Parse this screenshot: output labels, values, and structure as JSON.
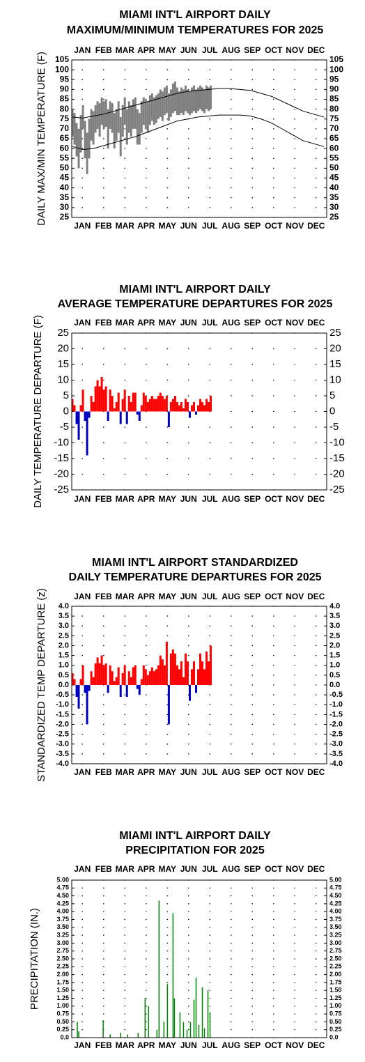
{
  "chart_data": [
    {
      "type": "range",
      "title": [
        "MIAMI INT'L AIRPORT DAILY",
        "MAXIMUM/MINIMUM TEMPERATURES FOR 2025"
      ],
      "y_label": "DAILY MAX/MIN TEMPERATURE (F)",
      "categories": [
        "JAN",
        "FEB",
        "MAR",
        "APR",
        "MAY",
        "JUN",
        "JUL",
        "AUG",
        "SEP",
        "OCT",
        "NOV",
        "DEC"
      ],
      "xlim": [
        0,
        365
      ],
      "ylim": [
        25,
        105
      ],
      "yticks": [
        25,
        30,
        35,
        40,
        45,
        50,
        55,
        60,
        65,
        70,
        75,
        80,
        85,
        90,
        95,
        100,
        105
      ],
      "x": [
        1,
        4,
        7,
        10,
        13,
        16,
        19,
        22,
        25,
        28,
        31,
        34,
        37,
        40,
        43,
        46,
        49,
        52,
        55,
        58,
        61,
        64,
        67,
        70,
        73,
        76,
        79,
        82,
        85,
        88,
        91,
        94,
        97,
        100,
        103,
        106,
        109,
        112,
        115,
        118,
        121,
        124,
        127,
        130,
        133,
        136,
        139,
        142,
        145,
        148,
        151,
        154,
        157,
        160,
        163,
        166,
        169,
        172,
        175,
        178,
        181,
        184,
        187,
        190,
        193,
        196,
        199
      ],
      "high": [
        80,
        78,
        73,
        70,
        77,
        82,
        74,
        68,
        75,
        80,
        79,
        82,
        84,
        83,
        86,
        84,
        85,
        80,
        84,
        83,
        78,
        80,
        84,
        76,
        82,
        86,
        80,
        84,
        82,
        85,
        86,
        80,
        78,
        84,
        86,
        85,
        84,
        87,
        88,
        86,
        87,
        88,
        90,
        89,
        91,
        92,
        88,
        90,
        93,
        94,
        91,
        89,
        91,
        90,
        92,
        90,
        89,
        91,
        92,
        90,
        91,
        92,
        91,
        90,
        92,
        91,
        92
      ],
      "low": [
        66,
        62,
        56,
        50,
        58,
        70,
        55,
        47,
        55,
        64,
        62,
        68,
        70,
        66,
        72,
        70,
        71,
        60,
        70,
        68,
        60,
        64,
        68,
        56,
        66,
        72,
        62,
        68,
        66,
        70,
        70,
        62,
        62,
        68,
        72,
        70,
        68,
        72,
        74,
        72,
        73,
        75,
        76,
        74,
        77,
        78,
        74,
        76,
        78,
        79,
        77,
        77,
        78,
        77,
        79,
        78,
        77,
        78,
        79,
        78,
        79,
        80,
        79,
        78,
        80,
        79,
        80
      ],
      "color": "#808080",
      "normal_x": [
        1,
        16,
        31,
        46,
        61,
        76,
        91,
        106,
        121,
        136,
        151,
        166,
        181,
        196,
        211,
        226,
        241,
        256,
        271,
        286,
        301,
        316,
        331,
        346,
        361
      ],
      "normal_high": [
        76,
        75.5,
        76.5,
        77.5,
        79,
        80.5,
        82,
        83.5,
        85,
        86.5,
        88,
        89,
        89.5,
        90,
        90.5,
        90.5,
        90,
        89.5,
        88,
        86.5,
        84,
        81.5,
        79,
        77.5,
        76
      ],
      "normal_low": [
        61,
        59.5,
        60,
        61.5,
        63,
        64.5,
        66,
        68,
        70,
        72,
        74,
        75,
        76,
        76.5,
        77,
        77,
        77,
        76.5,
        75,
        73,
        70,
        67,
        64,
        62.5,
        61
      ],
      "line_color": "#000000",
      "grid": true
    },
    {
      "type": "bar",
      "title": [
        "MIAMI INT'L AIRPORT DAILY",
        "AVERAGE TEMPERATURE DEPARTURES FOR 2025"
      ],
      "y_label": "DAILY TEMPERATURE DEPARTURE (F)",
      "categories": [
        "JAN",
        "FEB",
        "MAR",
        "APR",
        "MAY",
        "JUN",
        "JUL",
        "AUG",
        "SEP",
        "OCT",
        "NOV",
        "DEC"
      ],
      "xlim": [
        0,
        365
      ],
      "ylim": [
        -25,
        25
      ],
      "yticks": [
        -25,
        -20,
        -15,
        -10,
        -5,
        0,
        5,
        10,
        15,
        20,
        25
      ],
      "x": [
        1,
        4,
        7,
        10,
        13,
        16,
        19,
        22,
        25,
        28,
        31,
        34,
        37,
        40,
        43,
        46,
        49,
        52,
        55,
        58,
        61,
        64,
        67,
        70,
        73,
        76,
        79,
        82,
        85,
        88,
        91,
        94,
        97,
        100,
        103,
        106,
        109,
        112,
        115,
        118,
        121,
        124,
        127,
        130,
        133,
        136,
        139,
        142,
        145,
        148,
        151,
        154,
        157,
        160,
        163,
        166,
        169,
        172,
        175,
        178,
        181,
        184,
        187,
        190,
        193,
        196,
        199
      ],
      "values": [
        4,
        2,
        -4,
        -9,
        2,
        7,
        -3,
        -14,
        -2,
        5,
        3,
        8,
        10,
        8,
        11,
        7,
        8,
        -3,
        7,
        5,
        1,
        3,
        6,
        -4,
        4,
        7,
        -4,
        5,
        3,
        6,
        6,
        -1,
        -3,
        2,
        6,
        5,
        3,
        4,
        5,
        4,
        4,
        5,
        6,
        5,
        4,
        5,
        -5,
        3,
        4,
        5,
        3,
        2,
        3,
        1,
        4,
        3,
        -2,
        2,
        3,
        -1,
        2,
        4,
        3,
        2,
        4,
        3,
        5
      ],
      "color_positive": "#ff0000",
      "color_negative": "#0000c0",
      "grid": true
    },
    {
      "type": "bar",
      "title": [
        "MIAMI INT'L AIRPORT STANDARDIZED",
        "DAILY TEMPERATURE DEPARTURES FOR 2025"
      ],
      "y_label": "STANDARDIZED TEMP DEPARTURE (z)",
      "categories": [
        "JAN",
        "FEB",
        "MAR",
        "APR",
        "MAY",
        "JUN",
        "JUL",
        "AUG",
        "SEP",
        "OCT",
        "NOV",
        "DEC"
      ],
      "xlim": [
        0,
        365
      ],
      "ylim": [
        -4,
        4
      ],
      "yticks": [
        {
          "value": -4,
          "label": "-4.0"
        },
        {
          "value": -3.5,
          "label": "-3.5"
        },
        {
          "value": -3,
          "label": "-3.0"
        },
        {
          "value": -2.5,
          "label": "-2.5"
        },
        {
          "value": -2,
          "label": "-2.0"
        },
        {
          "value": -1.5,
          "label": "-1.5"
        },
        {
          "value": -1,
          "label": "-1.0"
        },
        {
          "value": -0.5,
          "label": "-0.5"
        },
        {
          "value": 0,
          "label": "0.0"
        },
        {
          "value": 0.5,
          "label": "0.5"
        },
        {
          "value": 1,
          "label": "1.0"
        },
        {
          "value": 1.5,
          "label": "1.5"
        },
        {
          "value": 2,
          "label": "2.0"
        },
        {
          "value": 2.5,
          "label": "2.5"
        },
        {
          "value": 3,
          "label": "3.0"
        },
        {
          "value": 3.5,
          "label": "3.5"
        },
        {
          "value": 4,
          "label": "4.0"
        }
      ],
      "x": [
        1,
        4,
        7,
        10,
        13,
        16,
        19,
        22,
        25,
        28,
        31,
        34,
        37,
        40,
        43,
        46,
        49,
        52,
        55,
        58,
        61,
        64,
        67,
        70,
        73,
        76,
        79,
        82,
        85,
        88,
        91,
        94,
        97,
        100,
        103,
        106,
        109,
        112,
        115,
        118,
        121,
        124,
        127,
        130,
        133,
        136,
        139,
        142,
        145,
        148,
        151,
        154,
        157,
        160,
        163,
        166,
        169,
        172,
        175,
        178,
        181,
        184,
        187,
        190,
        193,
        196,
        199
      ],
      "values": [
        0.6,
        0.3,
        -0.6,
        -1.2,
        0.3,
        1.0,
        -0.4,
        -2.0,
        -0.3,
        0.7,
        0.4,
        1.1,
        1.4,
        1.1,
        1.5,
        1.0,
        1.1,
        -0.4,
        1.0,
        0.7,
        0.2,
        0.4,
        0.9,
        -0.6,
        0.6,
        1.0,
        -0.6,
        0.7,
        0.4,
        0.9,
        1.0,
        -0.2,
        -0.5,
        0.3,
        1.0,
        0.8,
        0.5,
        0.7,
        0.9,
        0.7,
        0.8,
        1.0,
        1.5,
        1.3,
        1.0,
        2.2,
        -2.0,
        1.6,
        1.8,
        1.6,
        1.0,
        0.8,
        1.2,
        0.4,
        1.6,
        1.2,
        -0.8,
        0.8,
        1.2,
        -0.4,
        0.8,
        1.6,
        1.2,
        0.8,
        1.7,
        1.2,
        2.0
      ],
      "color_positive": "#ff0000",
      "color_negative": "#0000c0",
      "grid": true
    },
    {
      "type": "bar",
      "title": [
        "MIAMI INT'L AIRPORT DAILY",
        "PRECIPITATION FOR 2025"
      ],
      "y_label": "PRECIPITATION (IN.)",
      "categories": [
        "JAN",
        "FEB",
        "MAR",
        "APR",
        "MAY",
        "JUN",
        "JUL",
        "AUG",
        "SEP",
        "OCT",
        "NOV",
        "DEC"
      ],
      "xlim": [
        0,
        365
      ],
      "ylim": [
        0,
        5
      ],
      "yticks": [
        {
          "value": 0,
          "label": "0.0"
        },
        {
          "value": 0.25,
          "label": "0.25"
        },
        {
          "value": 0.5,
          "label": "0.50"
        },
        {
          "value": 0.75,
          "label": "0.75"
        },
        {
          "value": 1,
          "label": "1.00"
        },
        {
          "value": 1.25,
          "label": "1.25"
        },
        {
          "value": 1.5,
          "label": "1.50"
        },
        {
          "value": 1.75,
          "label": "1.75"
        },
        {
          "value": 2,
          "label": "2.00"
        },
        {
          "value": 2.25,
          "label": "2.25"
        },
        {
          "value": 2.5,
          "label": "2.50"
        },
        {
          "value": 2.75,
          "label": "2.75"
        },
        {
          "value": 3,
          "label": "3.00"
        },
        {
          "value": 3.25,
          "label": "3.25"
        },
        {
          "value": 3.5,
          "label": "3.50"
        },
        {
          "value": 3.75,
          "label": "3.75"
        },
        {
          "value": 4,
          "label": "4.00"
        },
        {
          "value": 4.25,
          "label": "4.25"
        },
        {
          "value": 4.5,
          "label": "4.50"
        },
        {
          "value": 4.75,
          "label": "4.75"
        },
        {
          "value": 5,
          "label": "5.00"
        }
      ],
      "x": [
        8,
        10,
        45,
        55,
        70,
        80,
        95,
        105,
        110,
        122,
        125,
        132,
        137,
        145,
        147,
        155,
        160,
        165,
        170,
        175,
        178,
        182,
        187,
        190,
        195,
        198
      ],
      "values": [
        0.5,
        0.2,
        0.55,
        0.1,
        0.15,
        0.1,
        0.15,
        1.25,
        1.0,
        0.25,
        4.35,
        0.5,
        1.7,
        3.95,
        1.25,
        0.8,
        0.5,
        0.25,
        0.5,
        1.2,
        1.9,
        0.4,
        1.6,
        0.3,
        1.5,
        0.8
      ],
      "color_positive": "#008000",
      "color_negative": "#008000",
      "grid": true
    }
  ]
}
